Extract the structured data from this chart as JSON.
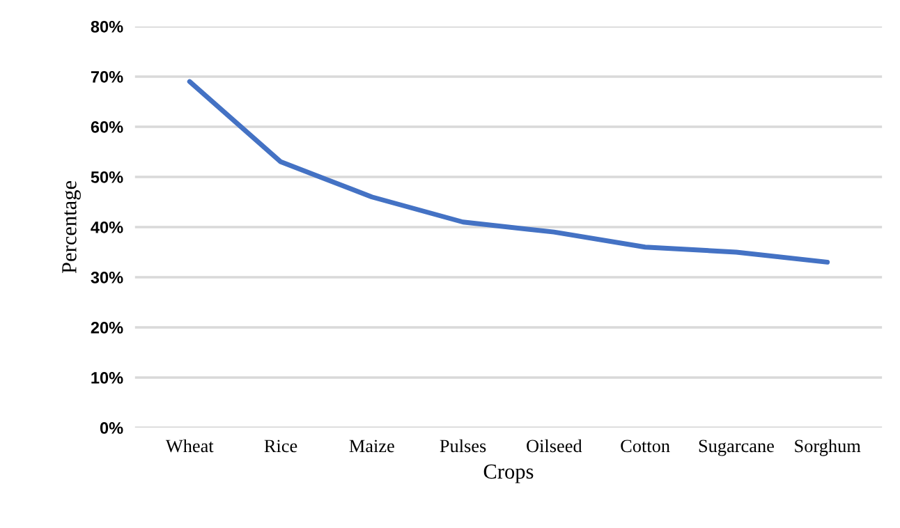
{
  "chart_data": {
    "type": "line",
    "xlabel": "Crops",
    "ylabel": "Percentage",
    "categories": [
      "Wheat",
      "Rice",
      "Maize",
      "Pulses",
      "Oilseed",
      "Cotton",
      "Sugarcane",
      "Sorghum"
    ],
    "series": [
      {
        "color": "#4472c4",
        "values": [
          69,
          53,
          46,
          41,
          39,
          36,
          35,
          33
        ]
      }
    ],
    "ylim": [
      0,
      80
    ],
    "yticks": [
      {
        "value": 0,
        "label": "0%"
      },
      {
        "value": 10,
        "label": "10%"
      },
      {
        "value": 20,
        "label": "20%"
      },
      {
        "value": 30,
        "label": "30%"
      },
      {
        "value": 40,
        "label": "40%"
      },
      {
        "value": 50,
        "label": "50%"
      },
      {
        "value": 60,
        "label": "60%"
      },
      {
        "value": 70,
        "label": "70%"
      },
      {
        "value": 80,
        "label": "80%"
      }
    ],
    "grid": "y",
    "legend": false
  }
}
